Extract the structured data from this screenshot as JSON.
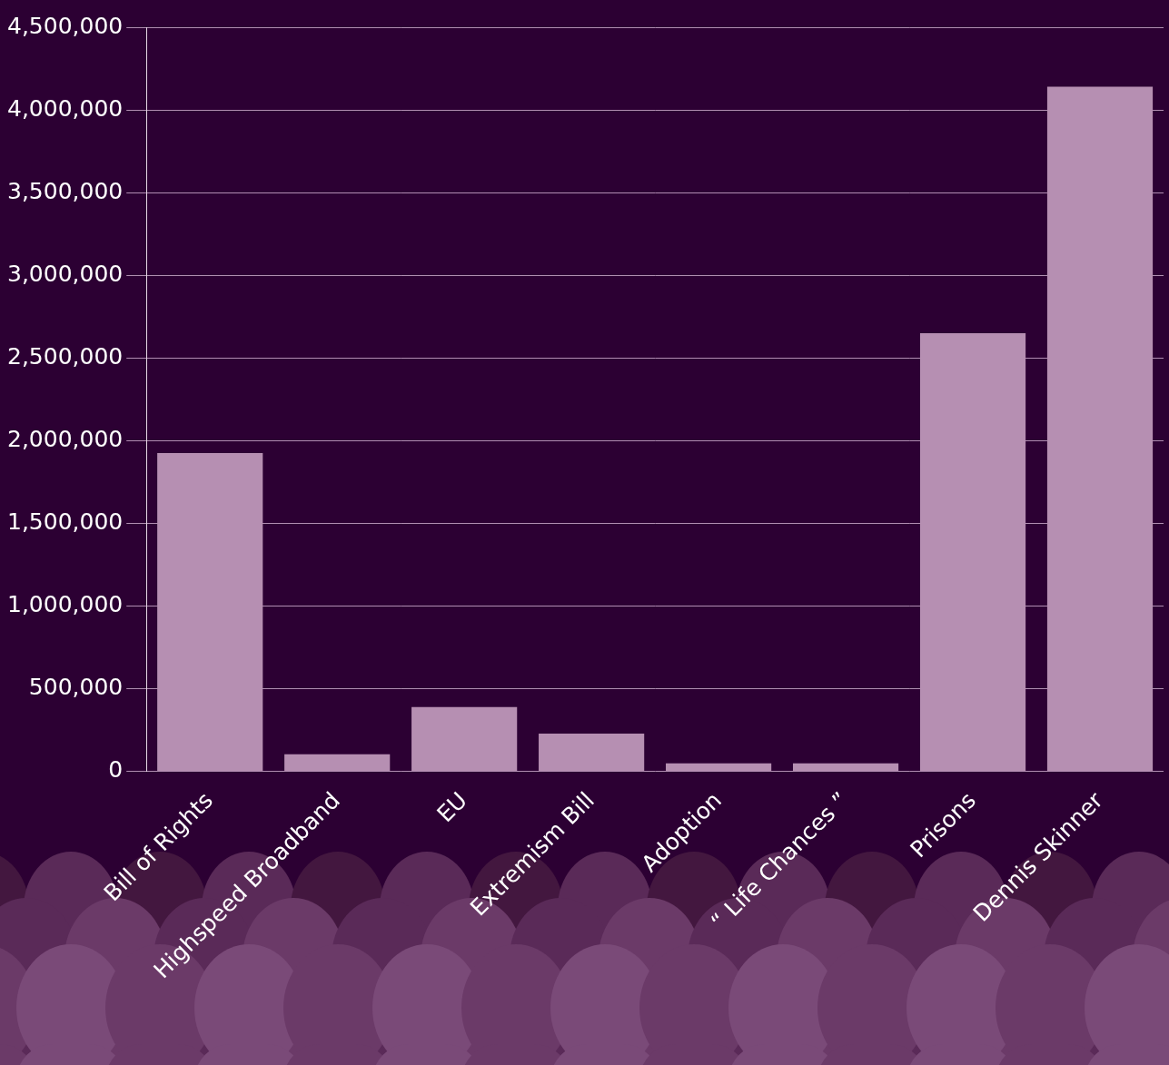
{
  "chart_data": {
    "type": "bar",
    "categories": [
      "Bill of Rights",
      "Highspeed Broadband",
      "EU",
      "Extremism Bill",
      "Adoption",
      "“ Life Chances ”",
      "Prisons",
      "Dennis Skinner"
    ],
    "values": [
      1925000,
      105000,
      390000,
      230000,
      50000,
      50000,
      2650000,
      4140000
    ],
    "color": "#b68fb2",
    "ylim": [
      0,
      4500000
    ],
    "yticks": [
      0,
      {
        "value": 500000,
        "label": "500,000"
      },
      {
        "value": 1000000,
        "label": "1,000,000"
      },
      {
        "value": 1500000,
        "label": "1,500,000"
      },
      {
        "value": 2000000,
        "label": "2,000,000"
      },
      {
        "value": 2500000,
        "label": "2,500,000"
      },
      {
        "value": 3000000,
        "label": "3,000,000"
      },
      {
        "value": 3500000,
        "label": "3,500,000"
      },
      {
        "value": 4000000,
        "label": "4,000,000"
      },
      {
        "value": 4500000,
        "label": "4,500,000"
      }
    ],
    "grid": true
  }
}
